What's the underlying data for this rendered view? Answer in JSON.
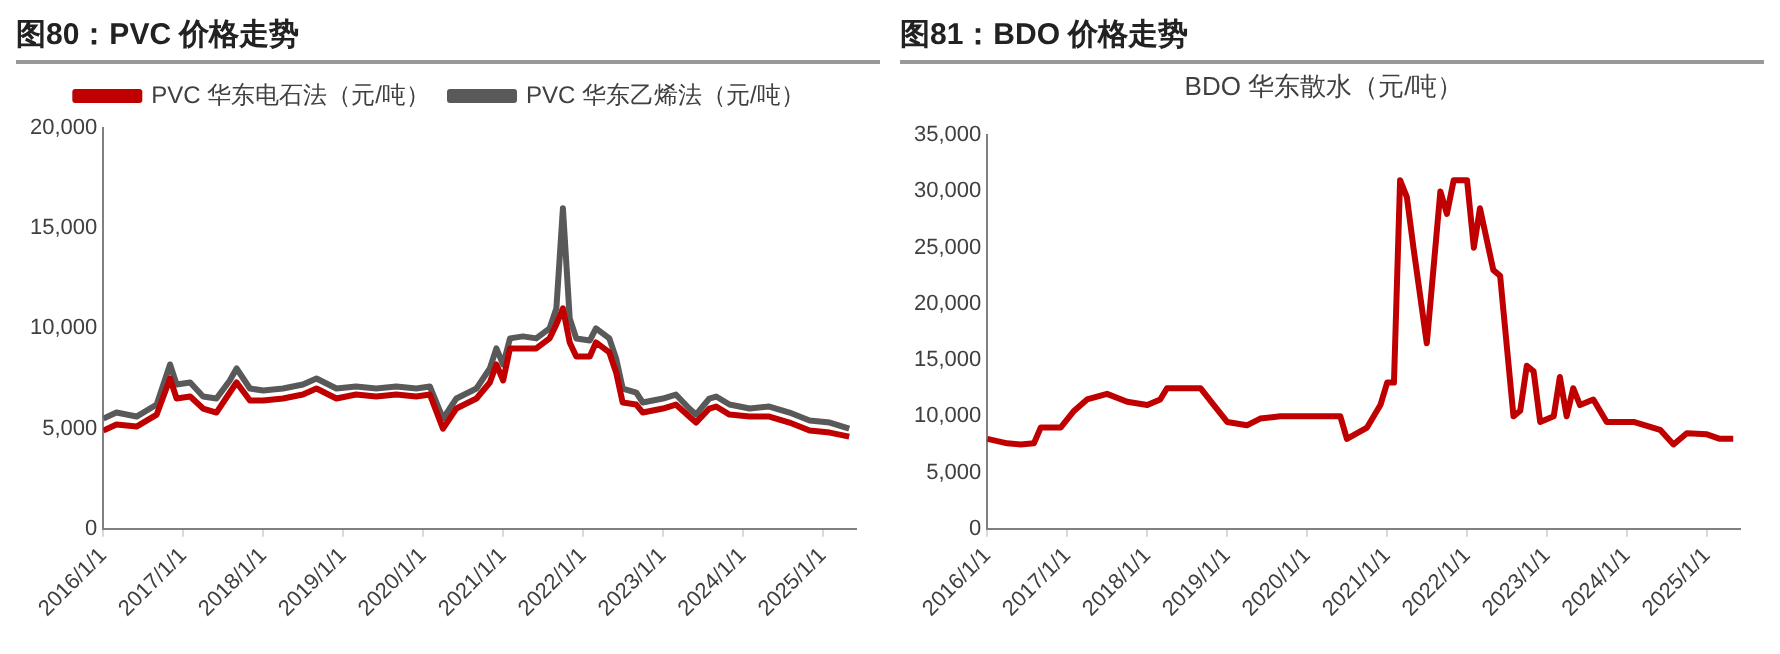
{
  "chart_data": [
    {
      "type": "line",
      "title": "图80：PVC 价格走势",
      "legend": "top",
      "grid": false,
      "xlim": [
        "2016-01-01",
        "2025-06-01"
      ],
      "xticks": [
        {
          "value": "2016-01-01",
          "label": "2016/1/1"
        },
        {
          "value": "2017-01-01",
          "label": "2017/1/1"
        },
        {
          "value": "2018-01-01",
          "label": "2018/1/1"
        },
        {
          "value": "2019-01-01",
          "label": "2019/1/1"
        },
        {
          "value": "2020-01-01",
          "label": "2020/1/1"
        },
        {
          "value": "2021-01-01",
          "label": "2021/1/1"
        },
        {
          "value": "2022-01-01",
          "label": "2022/1/1"
        },
        {
          "value": "2023-01-01",
          "label": "2023/1/1"
        },
        {
          "value": "2024-01-01",
          "label": "2024/1/1"
        },
        {
          "value": "2025-01-01",
          "label": "2025/1/1"
        }
      ],
      "ylim": [
        0,
        20000
      ],
      "yticks": [
        0,
        {
          "value": 5000,
          "label": "5,000"
        },
        {
          "value": 10000,
          "label": "10,000"
        },
        {
          "value": 15000,
          "label": "15,000"
        },
        {
          "value": 20000,
          "label": "20,000"
        }
      ],
      "series": [
        {
          "name": "PVC 华东电石法（元/吨）",
          "color": "#c00000",
          "x": [
            "2016-01",
            "2016-03",
            "2016-06",
            "2016-09",
            "2016-11",
            "2016-12",
            "2017-02",
            "2017-04",
            "2017-06",
            "2017-08",
            "2017-09",
            "2017-11",
            "2018-01",
            "2018-04",
            "2018-07",
            "2018-09",
            "2018-12",
            "2019-03",
            "2019-06",
            "2019-09",
            "2019-12",
            "2020-02",
            "2020-04",
            "2020-06",
            "2020-09",
            "2020-11",
            "2020-12",
            "2021-01",
            "2021-02",
            "2021-04",
            "2021-06",
            "2021-08",
            "2021-09",
            "2021-10",
            "2021-11",
            "2021-12",
            "2022-02",
            "2022-03",
            "2022-05",
            "2022-06",
            "2022-07",
            "2022-09",
            "2022-10",
            "2023-01",
            "2023-03",
            "2023-05",
            "2023-06",
            "2023-08",
            "2023-09",
            "2023-11",
            "2024-02",
            "2024-05",
            "2024-08",
            "2024-11",
            "2025-02",
            "2025-05"
          ],
          "values": [
            4900,
            5200,
            5100,
            5700,
            7500,
            6500,
            6600,
            6000,
            5800,
            6800,
            7300,
            6400,
            6400,
            6500,
            6700,
            7000,
            6500,
            6700,
            6600,
            6700,
            6600,
            6700,
            5000,
            6000,
            6500,
            7300,
            8200,
            7400,
            9000,
            9000,
            9000,
            9500,
            10200,
            11000,
            9300,
            8600,
            8600,
            9300,
            8800,
            7800,
            6300,
            6200,
            5800,
            6000,
            6200,
            5600,
            5300,
            6000,
            6100,
            5700,
            5600,
            5600,
            5300,
            4900,
            4800,
            4600
          ]
        },
        {
          "name": "PVC 华东乙烯法（元/吨）",
          "color": "#595959",
          "x": [
            "2016-01",
            "2016-03",
            "2016-06",
            "2016-09",
            "2016-11",
            "2016-12",
            "2017-02",
            "2017-04",
            "2017-06",
            "2017-08",
            "2017-09",
            "2017-11",
            "2018-01",
            "2018-04",
            "2018-07",
            "2018-09",
            "2018-12",
            "2019-03",
            "2019-06",
            "2019-09",
            "2019-12",
            "2020-02",
            "2020-04",
            "2020-06",
            "2020-09",
            "2020-11",
            "2020-12",
            "2021-01",
            "2021-02",
            "2021-04",
            "2021-06",
            "2021-08",
            "2021-09",
            "2021-10",
            "2021-11",
            "2021-12",
            "2022-02",
            "2022-03",
            "2022-05",
            "2022-06",
            "2022-07",
            "2022-09",
            "2022-10",
            "2023-01",
            "2023-03",
            "2023-05",
            "2023-06",
            "2023-08",
            "2023-09",
            "2023-11",
            "2024-02",
            "2024-05",
            "2024-08",
            "2024-11",
            "2025-02",
            "2025-05"
          ],
          "values": [
            5500,
            5800,
            5600,
            6200,
            8200,
            7200,
            7300,
            6600,
            6500,
            7400,
            8000,
            7000,
            6900,
            7000,
            7200,
            7500,
            7000,
            7100,
            7000,
            7100,
            7000,
            7100,
            5500,
            6500,
            7000,
            8000,
            9000,
            8200,
            9500,
            9600,
            9500,
            10000,
            11000,
            16000,
            10500,
            9500,
            9400,
            10000,
            9500,
            8500,
            7000,
            6800,
            6300,
            6500,
            6700,
            6000,
            5700,
            6500,
            6600,
            6200,
            6000,
            6100,
            5800,
            5400,
            5300,
            5000
          ]
        }
      ]
    },
    {
      "type": "line",
      "title": "图81：BDO 价格走势",
      "subtitle": "BDO 华东散水（元/吨）",
      "grid": false,
      "xlim": [
        "2016-01-01",
        "2025-06-01"
      ],
      "xticks": [
        {
          "value": "2016-01-01",
          "label": "2016/1/1"
        },
        {
          "value": "2017-01-01",
          "label": "2017/1/1"
        },
        {
          "value": "2018-01-01",
          "label": "2018/1/1"
        },
        {
          "value": "2019-01-01",
          "label": "2019/1/1"
        },
        {
          "value": "2020-01-01",
          "label": "2020/1/1"
        },
        {
          "value": "2021-01-01",
          "label": "2021/1/1"
        },
        {
          "value": "2022-01-01",
          "label": "2022/1/1"
        },
        {
          "value": "2023-01-01",
          "label": "2023/1/1"
        },
        {
          "value": "2024-01-01",
          "label": "2024/1/1"
        },
        {
          "value": "2025-01-01",
          "label": "2025/1/1"
        }
      ],
      "ylim": [
        0,
        35000
      ],
      "yticks": [
        0,
        {
          "value": 5000,
          "label": "5,000"
        },
        {
          "value": 10000,
          "label": "10,000"
        },
        {
          "value": 15000,
          "label": "15,000"
        },
        {
          "value": 20000,
          "label": "20,000"
        },
        {
          "value": 25000,
          "label": "25,000"
        },
        {
          "value": 30000,
          "label": "30,000"
        },
        {
          "value": 35000,
          "label": "35,000"
        }
      ],
      "series": [
        {
          "color": "#c00000",
          "x": [
            "2016-01",
            "2016-04",
            "2016-06",
            "2016-08",
            "2016-09",
            "2016-12",
            "2017-02",
            "2017-04",
            "2017-07",
            "2017-10",
            "2018-01",
            "2018-03",
            "2018-04",
            "2018-09",
            "2018-11",
            "2019-01",
            "2019-04",
            "2019-06",
            "2019-09",
            "2020-06",
            "2020-07",
            "2020-10",
            "2020-12",
            "2021-01",
            "2021-02",
            "2021-03",
            "2021-04",
            "2021-05",
            "2021-07",
            "2021-09",
            "2021-10",
            "2021-11",
            "2022-01",
            "2022-02",
            "2022-03",
            "2022-05",
            "2022-06",
            "2022-08",
            "2022-09",
            "2022-10",
            "2022-11",
            "2022-12",
            "2023-02",
            "2023-03",
            "2023-04",
            "2023-05",
            "2023-06",
            "2023-08",
            "2023-10",
            "2024-02",
            "2024-06",
            "2024-08",
            "2024-10",
            "2025-01",
            "2025-03",
            "2025-05"
          ],
          "values": [
            8000,
            7600,
            7500,
            7600,
            9000,
            9000,
            10500,
            11500,
            12000,
            11300,
            11000,
            11500,
            12500,
            12500,
            11000,
            9500,
            9200,
            9800,
            10000,
            10000,
            8000,
            9000,
            11000,
            13000,
            13000,
            31000,
            29500,
            25000,
            16500,
            30000,
            28000,
            31000,
            31000,
            25000,
            28500,
            23000,
            22500,
            10000,
            10500,
            14500,
            14000,
            9500,
            10000,
            13500,
            10000,
            12500,
            11000,
            11500,
            9500,
            9500,
            8800,
            7500,
            8500,
            8400,
            8000,
            8000
          ]
        }
      ]
    }
  ]
}
